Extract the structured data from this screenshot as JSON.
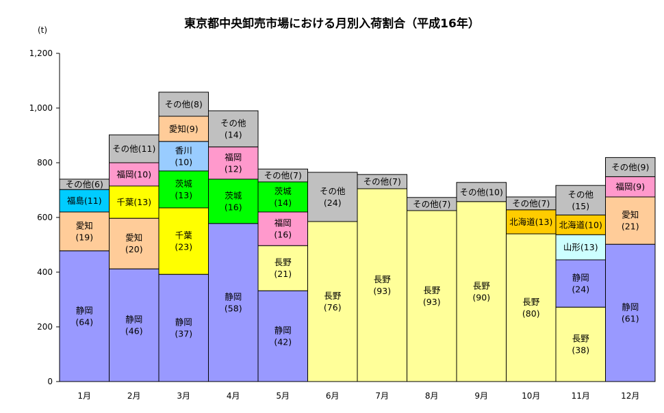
{
  "chart_data": {
    "type": "bar",
    "stacked": true,
    "title": "東京都中央卸売市場における月別入荷割合（平成16年）",
    "ylabel": "(t)",
    "ylim": [
      0,
      1200
    ],
    "yticks": [
      "0",
      "200",
      "400",
      "600",
      "800",
      "1,000",
      "1,200"
    ],
    "categories": [
      "1月",
      "2月",
      "3月",
      "4月",
      "5月",
      "6月",
      "7月",
      "8月",
      "9月",
      "10月",
      "11月",
      "12月"
    ],
    "bars": [
      {
        "month": "1月",
        "segments": [
          {
            "name": "静岡",
            "value": 478,
            "label": "静岡\n(64)",
            "color": "#9999ff"
          },
          {
            "name": "愛知",
            "value": 142,
            "label": "愛知\n(19)",
            "color": "#ffcc99"
          },
          {
            "name": "福島",
            "value": 82,
            "label": "福島(11)",
            "color": "#00ccff"
          },
          {
            "name": "その他",
            "value": 38,
            "label": "その他(6)",
            "color": "#c0c0c0"
          }
        ]
      },
      {
        "month": "2月",
        "segments": [
          {
            "name": "静岡",
            "value": 412,
            "label": "静岡\n(46)",
            "color": "#9999ff"
          },
          {
            "name": "愛知",
            "value": 185,
            "label": "愛知\n(20)",
            "color": "#ffcc99"
          },
          {
            "name": "千葉",
            "value": 118,
            "label": "千葉(13)",
            "color": "#ffff00"
          },
          {
            "name": "福岡",
            "value": 85,
            "label": "福岡(10)",
            "color": "#ff99cc"
          },
          {
            "name": "その他",
            "value": 102,
            "label": "その他(11)",
            "color": "#c0c0c0"
          }
        ]
      },
      {
        "month": "3月",
        "segments": [
          {
            "name": "静岡",
            "value": 392,
            "label": "静岡\n(37)",
            "color": "#9999ff"
          },
          {
            "name": "千葉",
            "value": 243,
            "label": "千葉\n(23)",
            "color": "#ffff00"
          },
          {
            "name": "茨城",
            "value": 135,
            "label": "茨城\n(13)",
            "color": "#00ff00"
          },
          {
            "name": "香川",
            "value": 108,
            "label": "香川\n(10)",
            "color": "#99ccff"
          },
          {
            "name": "愛知",
            "value": 92,
            "label": "愛知(9)",
            "color": "#ffcc99"
          },
          {
            "name": "その他",
            "value": 88,
            "label": "その他(8)",
            "color": "#c0c0c0"
          }
        ]
      },
      {
        "month": "4月",
        "segments": [
          {
            "name": "静岡",
            "value": 578,
            "label": "静岡\n(58)",
            "color": "#9999ff"
          },
          {
            "name": "茨城",
            "value": 162,
            "label": "茨城\n(16)",
            "color": "#00ff00"
          },
          {
            "name": "福岡",
            "value": 118,
            "label": "福岡\n(12)",
            "color": "#ff99cc"
          },
          {
            "name": "その他",
            "value": 132,
            "label": "その他\n(14)",
            "color": "#c0c0c0"
          }
        ]
      },
      {
        "month": "5月",
        "segments": [
          {
            "name": "静岡",
            "value": 332,
            "label": "静岡\n(42)",
            "color": "#9999ff"
          },
          {
            "name": "長野",
            "value": 165,
            "label": "長野\n(21)",
            "color": "#ffff99"
          },
          {
            "name": "福岡",
            "value": 123,
            "label": "福岡\n(16)",
            "color": "#ff99cc"
          },
          {
            "name": "茨城",
            "value": 110,
            "label": "茨城\n(14)",
            "color": "#00ff00"
          },
          {
            "name": "その他",
            "value": 47,
            "label": "その他(7)",
            "color": "#c0c0c0"
          }
        ]
      },
      {
        "month": "6月",
        "segments": [
          {
            "name": "長野",
            "value": 585,
            "label": "長野\n(76)",
            "color": "#ffff99"
          },
          {
            "name": "その他",
            "value": 180,
            "label": "その他\n(24)",
            "color": "#c0c0c0"
          }
        ]
      },
      {
        "month": "7月",
        "segments": [
          {
            "name": "長野",
            "value": 705,
            "label": "長野\n(93)",
            "color": "#ffff99"
          },
          {
            "name": "その他",
            "value": 52,
            "label": "その他(7)",
            "color": "#c0c0c0"
          }
        ]
      },
      {
        "month": "8月",
        "segments": [
          {
            "name": "長野",
            "value": 625,
            "label": "長野\n(93)",
            "color": "#ffff99"
          },
          {
            "name": "その他",
            "value": 48,
            "label": "その他(7)",
            "color": "#c0c0c0"
          }
        ]
      },
      {
        "month": "9月",
        "segments": [
          {
            "name": "長野",
            "value": 658,
            "label": "長野\n(90)",
            "color": "#ffff99"
          },
          {
            "name": "その他",
            "value": 70,
            "label": "その他(10)",
            "color": "#c0c0c0"
          }
        ]
      },
      {
        "month": "10月",
        "segments": [
          {
            "name": "長野",
            "value": 540,
            "label": "長野\n(80)",
            "color": "#ffff99"
          },
          {
            "name": "北海道",
            "value": 88,
            "label": "北海道(13)",
            "color": "#ffcc00"
          },
          {
            "name": "その他",
            "value": 47,
            "label": "その他(7)",
            "color": "#c0c0c0"
          }
        ]
      },
      {
        "month": "11月",
        "segments": [
          {
            "name": "長野",
            "value": 272,
            "label": "長野\n(38)",
            "color": "#ffff99"
          },
          {
            "name": "静岡",
            "value": 173,
            "label": "静岡\n(24)",
            "color": "#9999ff"
          },
          {
            "name": "山形",
            "value": 92,
            "label": "山形(13)",
            "color": "#ccffff"
          },
          {
            "name": "北海道",
            "value": 72,
            "label": "北海道(10)",
            "color": "#ffcc00"
          },
          {
            "name": "その他",
            "value": 108,
            "label": "その他\n(15)",
            "color": "#c0c0c0"
          }
        ]
      },
      {
        "month": "12月",
        "segments": [
          {
            "name": "静岡",
            "value": 502,
            "label": "静岡\n(61)",
            "color": "#9999ff"
          },
          {
            "name": "愛知",
            "value": 173,
            "label": "愛知\n(21)",
            "color": "#ffcc99"
          },
          {
            "name": "福岡",
            "value": 74,
            "label": "福岡(9)",
            "color": "#ff99cc"
          },
          {
            "name": "その他",
            "value": 70,
            "label": "その他(9)",
            "color": "#c0c0c0"
          }
        ]
      }
    ]
  }
}
